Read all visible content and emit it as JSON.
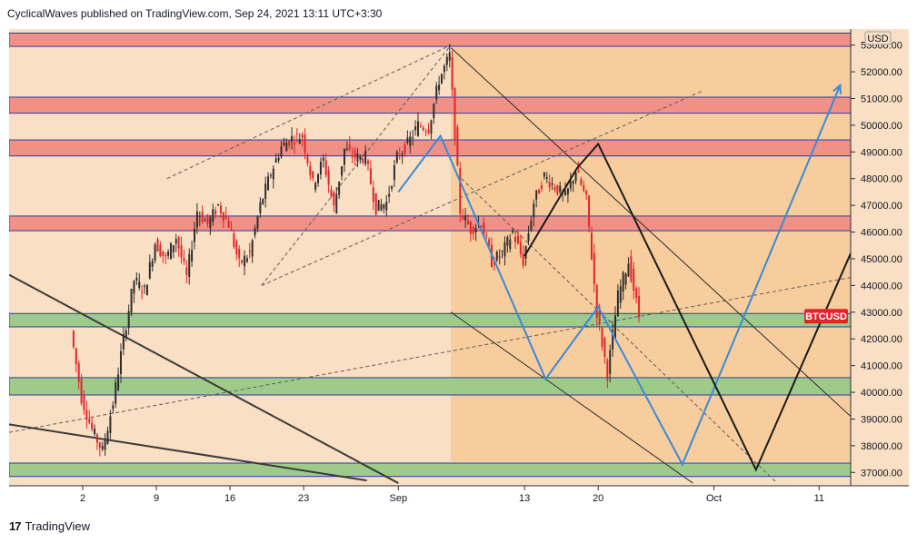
{
  "header": {
    "publish_line": "CyclicalWaves published on TradingView.com, Sep 24, 2021 13:11 UTC+3:30"
  },
  "footer": {
    "brand": "TradingView",
    "logo_glyph": "17"
  },
  "colors": {
    "background": "#f9dfc4",
    "resistance_zone": "#f19185",
    "support_zone": "#9fcb8a",
    "up_candle": "#2e2e2e",
    "down_candle": "#e0252a",
    "price_tag": "#e0252a",
    "blue_path": "#3a8ad6",
    "black_path": "#1a1a1a",
    "channel_fill": "#f6c792"
  },
  "chart_data": {
    "type": "candlestick",
    "symbol": "BTCUSD",
    "currency": "USD",
    "current_price": 42850,
    "ylim": [
      36500,
      53600
    ],
    "x_domain_days": [
      "2021-07-26",
      "2021-10-14"
    ],
    "y_ticks": [
      37000,
      38000,
      39000,
      40000,
      41000,
      42000,
      43000,
      44000,
      45000,
      46000,
      47000,
      48000,
      49000,
      50000,
      51000,
      52000,
      53000
    ],
    "y_tick_labels": [
      "37000.00",
      "38000.00",
      "39000.00",
      "40000.00",
      "41000.00",
      "42000.00",
      "43000.00",
      "44000.00",
      "45000.00",
      "46000.00",
      "47000.00",
      "48000.00",
      "49000.00",
      "50000.00",
      "51000.00",
      "52000.00",
      "53000.00"
    ],
    "x_ticks": [
      {
        "label": "2",
        "date": "2021-08-02"
      },
      {
        "label": "9",
        "date": "2021-08-09"
      },
      {
        "label": "16",
        "date": "2021-08-16"
      },
      {
        "label": "23",
        "date": "2021-08-23"
      },
      {
        "label": "Sep",
        "date": "2021-09-01"
      },
      {
        "label": "13",
        "date": "2021-09-13"
      },
      {
        "label": "20",
        "date": "2021-09-20"
      },
      {
        "label": "Oct",
        "date": "2021-10-01"
      },
      {
        "label": "11",
        "date": "2021-10-11"
      }
    ],
    "resistance_zones": [
      [
        52950,
        53450
      ],
      [
        50450,
        51050
      ],
      [
        48850,
        49450
      ],
      [
        46050,
        46600
      ]
    ],
    "support_zones": [
      [
        42450,
        42950
      ],
      [
        39900,
        40550
      ],
      [
        36850,
        37350
      ]
    ],
    "price_series": [
      [
        "2021-08-01",
        42300
      ],
      [
        "2021-08-02",
        39800
      ],
      [
        "2021-08-03",
        38600
      ],
      [
        "2021-08-04",
        37800
      ],
      [
        "2021-08-05",
        39600
      ],
      [
        "2021-08-06",
        42000
      ],
      [
        "2021-08-07",
        44200
      ],
      [
        "2021-08-08",
        43800
      ],
      [
        "2021-08-09",
        45600
      ],
      [
        "2021-08-10",
        45000
      ],
      [
        "2021-08-11",
        45800
      ],
      [
        "2021-08-12",
        44300
      ],
      [
        "2021-08-13",
        46800
      ],
      [
        "2021-08-14",
        46300
      ],
      [
        "2021-08-15",
        47000
      ],
      [
        "2021-08-16",
        46300
      ],
      [
        "2021-08-17",
        44800
      ],
      [
        "2021-08-18",
        45200
      ],
      [
        "2021-08-19",
        47000
      ],
      [
        "2021-08-20",
        48200
      ],
      [
        "2021-08-21",
        49200
      ],
      [
        "2021-08-22",
        49500
      ],
      [
        "2021-08-23",
        49600
      ],
      [
        "2021-08-24",
        47800
      ],
      [
        "2021-08-25",
        48700
      ],
      [
        "2021-08-26",
        46900
      ],
      [
        "2021-08-27",
        49100
      ],
      [
        "2021-08-28",
        48800
      ],
      [
        "2021-08-29",
        48800
      ],
      [
        "2021-08-30",
        46900
      ],
      [
        "2021-08-31",
        47100
      ],
      [
        "2021-09-01",
        48800
      ],
      [
        "2021-09-02",
        49300
      ],
      [
        "2021-09-03",
        50000
      ],
      [
        "2021-09-04",
        49900
      ],
      [
        "2021-09-05",
        51700
      ],
      [
        "2021-09-06",
        52600
      ],
      [
        "2021-09-07",
        46800
      ],
      [
        "2021-09-08",
        46100
      ],
      [
        "2021-09-09",
        46400
      ],
      [
        "2021-09-10",
        44900
      ],
      [
        "2021-09-11",
        45200
      ],
      [
        "2021-09-12",
        46000
      ],
      [
        "2021-09-13",
        44900
      ],
      [
        "2021-09-14",
        47100
      ],
      [
        "2021-09-15",
        48100
      ],
      [
        "2021-09-16",
        47700
      ],
      [
        "2021-09-17",
        47300
      ],
      [
        "2021-09-18",
        48300
      ],
      [
        "2021-09-19",
        47200
      ],
      [
        "2021-09-20",
        43000
      ],
      [
        "2021-09-21",
        40700
      ],
      [
        "2021-09-22",
        43600
      ],
      [
        "2021-09-23",
        44900
      ],
      [
        "2021-09-24",
        42850
      ]
    ],
    "trendlines": [
      {
        "style": "dashed",
        "points": [
          [
            "2021-08-19",
            44000
          ],
          [
            "2021-09-06",
            53000
          ]
        ]
      },
      {
        "style": "dashed",
        "points": [
          [
            "2021-08-10",
            48000
          ],
          [
            "2021-09-06",
            53000
          ]
        ]
      },
      {
        "style": "dashed",
        "points": [
          [
            "2021-07-26",
            38500
          ],
          [
            "2021-10-14",
            44300
          ]
        ]
      },
      {
        "style": "dashed",
        "points": [
          [
            "2021-08-19",
            44000
          ],
          [
            "2021-09-30",
            51300
          ]
        ]
      },
      {
        "style": "dashed",
        "points": [
          [
            "2021-09-07",
            48000
          ],
          [
            "2021-10-07",
            36600
          ]
        ]
      },
      {
        "style": "solid",
        "points": [
          [
            "2021-07-26",
            44400
          ],
          [
            "2021-09-01",
            36600
          ]
        ]
      },
      {
        "style": "solid",
        "points": [
          [
            "2021-07-26",
            38800
          ],
          [
            "2021-08-29",
            36700
          ]
        ]
      }
    ],
    "channel": {
      "upper": [
        [
          "2021-09-06",
          52900
        ],
        [
          "2021-10-14",
          39100
        ]
      ],
      "lower": [
        [
          "2021-09-06",
          43000
        ],
        [
          "2021-09-29",
          36600
        ]
      ],
      "box": {
        "from": "2021-09-06",
        "to": "2021-10-14",
        "low": 37400,
        "high": 52900
      }
    },
    "projection_blue": [
      [
        "2021-09-01",
        47500
      ],
      [
        "2021-09-05",
        49600
      ],
      [
        "2021-09-15",
        40500
      ],
      [
        "2021-09-20",
        43200
      ],
      [
        "2021-09-28",
        37300
      ],
      [
        "2021-10-13",
        51500
      ]
    ],
    "projection_black": [
      [
        "2021-09-13",
        45100
      ],
      [
        "2021-09-18",
        48400
      ],
      [
        "2021-09-20",
        49300
      ],
      [
        "2021-10-05",
        37100
      ],
      [
        "2021-10-14",
        45200
      ]
    ]
  }
}
